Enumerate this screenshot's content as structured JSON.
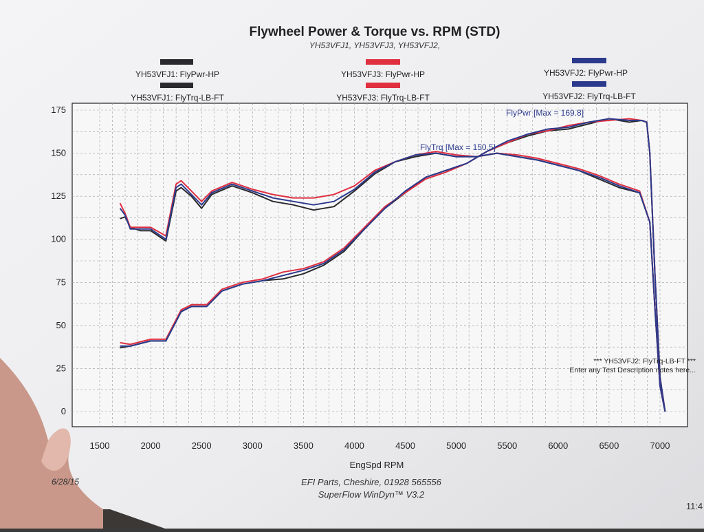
{
  "title": "Flywheel Power & Torque vs. RPM (STD)",
  "subtitle": "YH53VFJ1, YH53VFJ3, YH53VFJ2,",
  "legend": [
    {
      "hp": "YH53VFJ1: FlyPwr-HP",
      "tq": "YH53VFJ1: FlyTrq-LB-FT",
      "color": "#2a2a2e"
    },
    {
      "hp": "YH53VFJ3: FlyPwr-HP",
      "tq": "YH53VFJ3: FlyTrq-LB-FT",
      "color": "#e03040"
    },
    {
      "hp": "YH53VFJ2: FlyPwr-HP",
      "tq": "YH53VFJ2: FlyTrq-LB-FT",
      "color": "#2b3a8c"
    }
  ],
  "annotations": {
    "max_power": "FlyPwr [Max = 169.8]",
    "max_torque": "FlyTrq [Max = 150.5]",
    "note_line1": "*** YH53VFJ2: FlyTrq-LB-FT ***",
    "note_line2": "Enter any Test Description notes here..."
  },
  "footer": {
    "date": "6/28/15",
    "company": "EFI Parts, Cheshire, 01928 565556",
    "software": "SuperFlow WinDyn™ V3.2",
    "time": "11:4"
  },
  "chart_data": {
    "type": "line",
    "xlabel": "EngSpd RPM",
    "ylabel": "",
    "xlim": [
      1500,
      7000
    ],
    "ylim": [
      0,
      175
    ],
    "x_ticks": [
      "1500",
      "2000",
      "2500",
      "3000",
      "3500",
      "4000",
      "4500",
      "5000",
      "5500",
      "6000",
      "6500",
      "7000"
    ],
    "y_ticks": [
      "175",
      "150",
      "125",
      "100",
      "75",
      "50",
      "25",
      "0"
    ],
    "grid": true,
    "legend_position": "top",
    "series": [
      {
        "name": "YH53VFJ1: FlyPwr-HP",
        "color": "#2a2a2e",
        "x": [
          1700,
          1800,
          2000,
          2150,
          2300,
          2400,
          2550,
          2700,
          2900,
          3100,
          3300,
          3500,
          3700,
          3900,
          4100,
          4300,
          4500,
          4700,
          4900,
          5100,
          5300,
          5500,
          5700,
          5900,
          6100,
          6300,
          6500,
          6700,
          6820,
          6870,
          6900,
          6950,
          7000,
          7050
        ],
        "y": [
          37,
          38,
          41,
          41,
          58,
          61,
          61,
          70,
          74,
          76,
          77,
          80,
          85,
          93,
          106,
          118,
          127,
          136,
          140,
          144,
          151,
          156,
          160,
          163,
          164,
          167,
          170,
          168,
          169,
          168,
          150,
          80,
          20,
          0
        ]
      },
      {
        "name": "YH53VFJ3: FlyPwr-HP",
        "color": "#e03040",
        "x": [
          1700,
          1800,
          2000,
          2150,
          2300,
          2400,
          2550,
          2700,
          2900,
          3100,
          3300,
          3500,
          3700,
          3900,
          4100,
          4300,
          4500,
          4700,
          4900,
          5100,
          5300,
          5500,
          5700,
          5900,
          6100,
          6300,
          6500,
          6700,
          6820,
          6870,
          6900,
          6950,
          7000,
          7050
        ],
        "y": [
          40,
          39,
          42,
          42,
          59,
          62,
          62,
          71,
          75,
          77,
          81,
          83,
          87,
          95,
          107,
          119,
          127,
          135,
          139,
          144,
          151,
          156,
          161,
          163,
          166,
          168,
          169,
          170,
          169,
          168,
          150,
          80,
          20,
          0
        ]
      },
      {
        "name": "YH53VFJ2: FlyPwr-HP",
        "color": "#2b3a8c",
        "x": [
          1700,
          1800,
          2000,
          2150,
          2300,
          2400,
          2550,
          2700,
          2900,
          3100,
          3300,
          3500,
          3700,
          3900,
          4100,
          4300,
          4500,
          4700,
          4900,
          5100,
          5300,
          5500,
          5700,
          5900,
          6100,
          6300,
          6500,
          6700,
          6820,
          6870,
          6900,
          6950,
          7000,
          7050
        ],
        "y": [
          38,
          38,
          41,
          41,
          58,
          61,
          61,
          70,
          74,
          76,
          79,
          82,
          86,
          94,
          106,
          118,
          128,
          136,
          140,
          144,
          151,
          157,
          161,
          164,
          165,
          168,
          170,
          169,
          169,
          168,
          150,
          80,
          20,
          0
        ]
      },
      {
        "name": "YH53VFJ1: FlyTrq-LB-FT",
        "color": "#2a2a2e",
        "x": [
          1700,
          1750,
          1800,
          1900,
          2000,
          2150,
          2250,
          2300,
          2400,
          2500,
          2600,
          2800,
          3000,
          3200,
          3400,
          3600,
          3800,
          4000,
          4200,
          4400,
          4600,
          4800,
          5000,
          5200,
          5400,
          5600,
          5800,
          6000,
          6200,
          6400,
          6600,
          6800,
          6900,
          6950,
          7000,
          7050
        ],
        "y": [
          112,
          113,
          107,
          105,
          105,
          99,
          128,
          130,
          125,
          118,
          126,
          131,
          127,
          122,
          120,
          117,
          119,
          128,
          138,
          145,
          148,
          150,
          148,
          148,
          150,
          148,
          146,
          143,
          140,
          135,
          130,
          127,
          110,
          60,
          15,
          0
        ]
      },
      {
        "name": "YH53VFJ3: FlyTrq-LB-FT",
        "color": "#e03040",
        "x": [
          1700,
          1750,
          1800,
          1900,
          2000,
          2150,
          2250,
          2300,
          2400,
          2500,
          2600,
          2800,
          3000,
          3200,
          3400,
          3600,
          3800,
          4000,
          4200,
          4400,
          4600,
          4800,
          5000,
          5200,
          5400,
          5600,
          5800,
          6000,
          6200,
          6400,
          6600,
          6800,
          6900,
          6950,
          7000,
          7050
        ],
        "y": [
          121,
          115,
          107,
          107,
          107,
          102,
          132,
          134,
          128,
          122,
          128,
          133,
          129,
          126,
          124,
          124,
          126,
          131,
          140,
          145,
          149,
          151,
          149,
          148,
          150,
          149,
          147,
          144,
          141,
          137,
          132,
          128,
          110,
          60,
          15,
          0
        ]
      },
      {
        "name": "YH53VFJ2: FlyTrq-LB-FT",
        "color": "#2b3a8c",
        "x": [
          1700,
          1750,
          1800,
          1900,
          2000,
          2150,
          2250,
          2300,
          2400,
          2500,
          2600,
          2800,
          3000,
          3200,
          3400,
          3600,
          3800,
          4000,
          4200,
          4400,
          4600,
          4800,
          5000,
          5200,
          5400,
          5600,
          5800,
          6000,
          6200,
          6400,
          6600,
          6800,
          6900,
          6950,
          7000,
          7050
        ],
        "y": [
          118,
          114,
          106,
          106,
          106,
          100,
          130,
          132,
          126,
          120,
          127,
          132,
          128,
          124,
          122,
          120,
          122,
          129,
          139,
          145,
          149,
          150,
          148,
          148,
          150,
          148,
          146,
          143,
          140,
          136,
          131,
          127,
          110,
          60,
          15,
          0
        ]
      }
    ]
  }
}
